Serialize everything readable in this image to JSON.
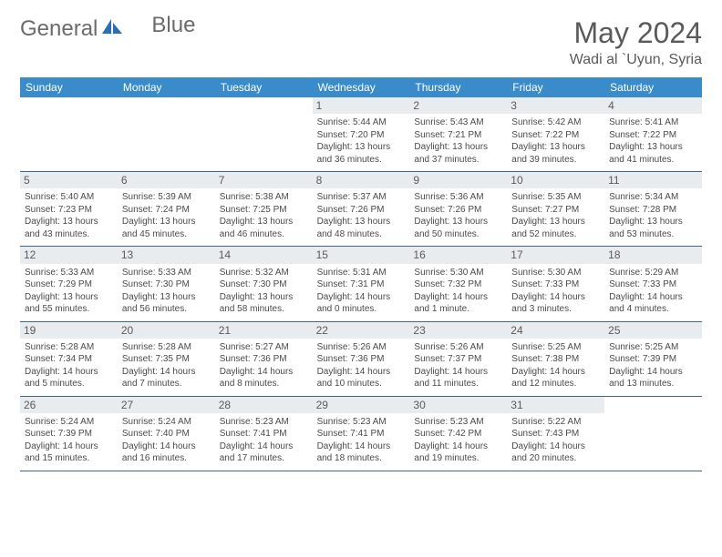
{
  "brand": {
    "general": "General",
    "blue": "Blue"
  },
  "title": {
    "month": "May 2024",
    "location": "Wadi al `Uyun, Syria"
  },
  "palette": {
    "header_bg": "#3a8bc9",
    "header_text": "#ffffff",
    "daynum_bg": "#e9ecef",
    "cell_border": "#3a6a8f",
    "text": "#4a4a4a",
    "logo_accent": "#2b6fb0"
  },
  "weekdays": [
    "Sunday",
    "Monday",
    "Tuesday",
    "Wednesday",
    "Thursday",
    "Friday",
    "Saturday"
  ],
  "layout": {
    "columns": 7,
    "rows": 5,
    "first_blank_cells": 3
  },
  "days": [
    {
      "n": "1",
      "sunrise": "Sunrise: 5:44 AM",
      "sunset": "Sunset: 7:20 PM",
      "dl1": "Daylight: 13 hours",
      "dl2": "and 36 minutes."
    },
    {
      "n": "2",
      "sunrise": "Sunrise: 5:43 AM",
      "sunset": "Sunset: 7:21 PM",
      "dl1": "Daylight: 13 hours",
      "dl2": "and 37 minutes."
    },
    {
      "n": "3",
      "sunrise": "Sunrise: 5:42 AM",
      "sunset": "Sunset: 7:22 PM",
      "dl1": "Daylight: 13 hours",
      "dl2": "and 39 minutes."
    },
    {
      "n": "4",
      "sunrise": "Sunrise: 5:41 AM",
      "sunset": "Sunset: 7:22 PM",
      "dl1": "Daylight: 13 hours",
      "dl2": "and 41 minutes."
    },
    {
      "n": "5",
      "sunrise": "Sunrise: 5:40 AM",
      "sunset": "Sunset: 7:23 PM",
      "dl1": "Daylight: 13 hours",
      "dl2": "and 43 minutes."
    },
    {
      "n": "6",
      "sunrise": "Sunrise: 5:39 AM",
      "sunset": "Sunset: 7:24 PM",
      "dl1": "Daylight: 13 hours",
      "dl2": "and 45 minutes."
    },
    {
      "n": "7",
      "sunrise": "Sunrise: 5:38 AM",
      "sunset": "Sunset: 7:25 PM",
      "dl1": "Daylight: 13 hours",
      "dl2": "and 46 minutes."
    },
    {
      "n": "8",
      "sunrise": "Sunrise: 5:37 AM",
      "sunset": "Sunset: 7:26 PM",
      "dl1": "Daylight: 13 hours",
      "dl2": "and 48 minutes."
    },
    {
      "n": "9",
      "sunrise": "Sunrise: 5:36 AM",
      "sunset": "Sunset: 7:26 PM",
      "dl1": "Daylight: 13 hours",
      "dl2": "and 50 minutes."
    },
    {
      "n": "10",
      "sunrise": "Sunrise: 5:35 AM",
      "sunset": "Sunset: 7:27 PM",
      "dl1": "Daylight: 13 hours",
      "dl2": "and 52 minutes."
    },
    {
      "n": "11",
      "sunrise": "Sunrise: 5:34 AM",
      "sunset": "Sunset: 7:28 PM",
      "dl1": "Daylight: 13 hours",
      "dl2": "and 53 minutes."
    },
    {
      "n": "12",
      "sunrise": "Sunrise: 5:33 AM",
      "sunset": "Sunset: 7:29 PM",
      "dl1": "Daylight: 13 hours",
      "dl2": "and 55 minutes."
    },
    {
      "n": "13",
      "sunrise": "Sunrise: 5:33 AM",
      "sunset": "Sunset: 7:30 PM",
      "dl1": "Daylight: 13 hours",
      "dl2": "and 56 minutes."
    },
    {
      "n": "14",
      "sunrise": "Sunrise: 5:32 AM",
      "sunset": "Sunset: 7:30 PM",
      "dl1": "Daylight: 13 hours",
      "dl2": "and 58 minutes."
    },
    {
      "n": "15",
      "sunrise": "Sunrise: 5:31 AM",
      "sunset": "Sunset: 7:31 PM",
      "dl1": "Daylight: 14 hours",
      "dl2": "and 0 minutes."
    },
    {
      "n": "16",
      "sunrise": "Sunrise: 5:30 AM",
      "sunset": "Sunset: 7:32 PM",
      "dl1": "Daylight: 14 hours",
      "dl2": "and 1 minute."
    },
    {
      "n": "17",
      "sunrise": "Sunrise: 5:30 AM",
      "sunset": "Sunset: 7:33 PM",
      "dl1": "Daylight: 14 hours",
      "dl2": "and 3 minutes."
    },
    {
      "n": "18",
      "sunrise": "Sunrise: 5:29 AM",
      "sunset": "Sunset: 7:33 PM",
      "dl1": "Daylight: 14 hours",
      "dl2": "and 4 minutes."
    },
    {
      "n": "19",
      "sunrise": "Sunrise: 5:28 AM",
      "sunset": "Sunset: 7:34 PM",
      "dl1": "Daylight: 14 hours",
      "dl2": "and 5 minutes."
    },
    {
      "n": "20",
      "sunrise": "Sunrise: 5:28 AM",
      "sunset": "Sunset: 7:35 PM",
      "dl1": "Daylight: 14 hours",
      "dl2": "and 7 minutes."
    },
    {
      "n": "21",
      "sunrise": "Sunrise: 5:27 AM",
      "sunset": "Sunset: 7:36 PM",
      "dl1": "Daylight: 14 hours",
      "dl2": "and 8 minutes."
    },
    {
      "n": "22",
      "sunrise": "Sunrise: 5:26 AM",
      "sunset": "Sunset: 7:36 PM",
      "dl1": "Daylight: 14 hours",
      "dl2": "and 10 minutes."
    },
    {
      "n": "23",
      "sunrise": "Sunrise: 5:26 AM",
      "sunset": "Sunset: 7:37 PM",
      "dl1": "Daylight: 14 hours",
      "dl2": "and 11 minutes."
    },
    {
      "n": "24",
      "sunrise": "Sunrise: 5:25 AM",
      "sunset": "Sunset: 7:38 PM",
      "dl1": "Daylight: 14 hours",
      "dl2": "and 12 minutes."
    },
    {
      "n": "25",
      "sunrise": "Sunrise: 5:25 AM",
      "sunset": "Sunset: 7:39 PM",
      "dl1": "Daylight: 14 hours",
      "dl2": "and 13 minutes."
    },
    {
      "n": "26",
      "sunrise": "Sunrise: 5:24 AM",
      "sunset": "Sunset: 7:39 PM",
      "dl1": "Daylight: 14 hours",
      "dl2": "and 15 minutes."
    },
    {
      "n": "27",
      "sunrise": "Sunrise: 5:24 AM",
      "sunset": "Sunset: 7:40 PM",
      "dl1": "Daylight: 14 hours",
      "dl2": "and 16 minutes."
    },
    {
      "n": "28",
      "sunrise": "Sunrise: 5:23 AM",
      "sunset": "Sunset: 7:41 PM",
      "dl1": "Daylight: 14 hours",
      "dl2": "and 17 minutes."
    },
    {
      "n": "29",
      "sunrise": "Sunrise: 5:23 AM",
      "sunset": "Sunset: 7:41 PM",
      "dl1": "Daylight: 14 hours",
      "dl2": "and 18 minutes."
    },
    {
      "n": "30",
      "sunrise": "Sunrise: 5:23 AM",
      "sunset": "Sunset: 7:42 PM",
      "dl1": "Daylight: 14 hours",
      "dl2": "and 19 minutes."
    },
    {
      "n": "31",
      "sunrise": "Sunrise: 5:22 AM",
      "sunset": "Sunset: 7:43 PM",
      "dl1": "Daylight: 14 hours",
      "dl2": "and 20 minutes."
    }
  ]
}
